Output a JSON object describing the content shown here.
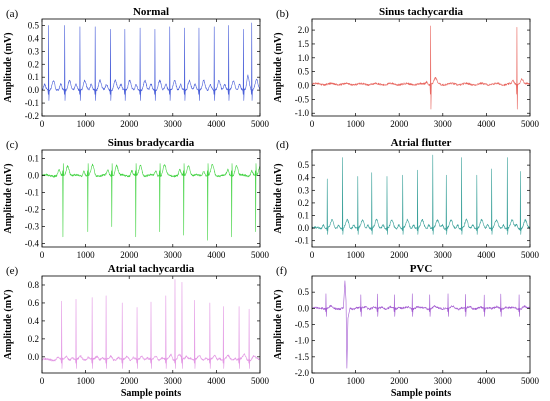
{
  "chart_data": [
    {
      "type": "line",
      "panel": "(a)",
      "title": "Normal",
      "ylabel": "Amplitude (mV)",
      "xlabel": "",
      "xlim": [
        0,
        5000
      ],
      "ylim": [
        -0.2,
        0.55
      ],
      "xticks": [
        0,
        1000,
        2000,
        3000,
        4000,
        5000
      ],
      "yticks": [
        -0.2,
        -0.1,
        0.0,
        0.1,
        0.2,
        0.3,
        0.4,
        0.5
      ],
      "ytick_labels": [
        "-0.2",
        "-0.1",
        "0.0",
        "0.1",
        "0.2",
        "0.3",
        "0.4",
        "0.5"
      ],
      "color": "#4a5fd9",
      "baseline": 0.0,
      "beats": [
        {
          "x": 150,
          "peak": 0.5
        },
        {
          "x": 520,
          "peak": 0.5
        },
        {
          "x": 870,
          "peak": 0.49
        },
        {
          "x": 1220,
          "peak": 0.49
        },
        {
          "x": 1570,
          "peak": 0.47
        },
        {
          "x": 1900,
          "peak": 0.47
        },
        {
          "x": 2250,
          "peak": 0.48
        },
        {
          "x": 2590,
          "peak": 0.47
        },
        {
          "x": 2930,
          "peak": 0.49
        },
        {
          "x": 3270,
          "peak": 0.48
        },
        {
          "x": 3600,
          "peak": 0.48
        },
        {
          "x": 3950,
          "peak": 0.49
        },
        {
          "x": 4280,
          "peak": 0.5
        },
        {
          "x": 4620,
          "peak": 0.47
        },
        {
          "x": 4810,
          "peak": 0.52
        }
      ],
      "twave": 0.08,
      "dip": -0.08
    },
    {
      "type": "line",
      "panel": "(b)",
      "title": "Sinus tachycardia",
      "ylabel": "Amplitude (mV)",
      "xlabel": "",
      "xlim": [
        0,
        5000
      ],
      "ylim": [
        -1.1,
        2.4
      ],
      "xticks": [
        0,
        1000,
        2000,
        3000,
        4000,
        5000
      ],
      "yticks": [
        -1.0,
        -0.5,
        0.0,
        0.5,
        1.0,
        1.5,
        2.0
      ],
      "ytick_labels": [
        "-1.0",
        "-0.5",
        "0.0",
        "0.5",
        "1.0",
        "1.5",
        "2.0"
      ],
      "color": "#e8665f",
      "baseline": 0.05,
      "beats": [
        {
          "x": 2720,
          "peak": 2.15
        },
        {
          "x": 4700,
          "peak": 2.1
        }
      ],
      "twave": 0.2,
      "dip": -0.9
    },
    {
      "type": "line",
      "panel": "(c)",
      "title": "Sinus bradycardia",
      "ylabel": "Amplitude (mV)",
      "xlabel": "",
      "xlim": [
        0,
        5000
      ],
      "ylim": [
        -0.42,
        0.15
      ],
      "xticks": [
        0,
        1000,
        2000,
        3000,
        4000,
        5000
      ],
      "yticks": [
        -0.4,
        -0.3,
        -0.2,
        -0.1,
        0.0,
        0.1
      ],
      "ytick_labels": [
        "-0.4",
        "-0.3",
        "-0.2",
        "-0.1",
        "0.0",
        "0.1"
      ],
      "color": "#3fd23f",
      "baseline": 0.0,
      "beats": [
        {
          "x": 480,
          "peak": -0.36
        },
        {
          "x": 1050,
          "peak": -0.33
        },
        {
          "x": 1600,
          "peak": -0.3
        },
        {
          "x": 2150,
          "peak": -0.36
        },
        {
          "x": 2700,
          "peak": -0.33
        },
        {
          "x": 3250,
          "peak": -0.35
        },
        {
          "x": 3800,
          "peak": -0.38
        },
        {
          "x": 4350,
          "peak": -0.36
        },
        {
          "x": 4900,
          "peak": -0.33
        }
      ],
      "twave": 0.06,
      "dip": 0.07
    },
    {
      "type": "line",
      "panel": "(d)",
      "title": "Atrial flutter",
      "ylabel": "Amplitude (mV)",
      "xlabel": "",
      "xlim": [
        0,
        5000
      ],
      "ylim": [
        -0.15,
        0.62
      ],
      "xticks": [
        0,
        1000,
        2000,
        3000,
        4000,
        5000
      ],
      "yticks": [
        -0.1,
        0.0,
        0.1,
        0.2,
        0.3,
        0.4,
        0.5
      ],
      "ytick_labels": [
        "-0.1",
        "0.0",
        "0.1",
        "0.2",
        "0.3",
        "0.4",
        "0.5"
      ],
      "color": "#3aa19a",
      "baseline": 0.0,
      "beats": [
        {
          "x": 350,
          "peak": 0.39
        },
        {
          "x": 700,
          "peak": 0.56
        },
        {
          "x": 1050,
          "peak": 0.41
        },
        {
          "x": 1370,
          "peak": 0.44
        },
        {
          "x": 1720,
          "peak": 0.41
        },
        {
          "x": 2080,
          "peak": 0.42
        },
        {
          "x": 2420,
          "peak": 0.46
        },
        {
          "x": 2770,
          "peak": 0.58
        },
        {
          "x": 3080,
          "peak": 0.42
        },
        {
          "x": 3430,
          "peak": 0.56
        },
        {
          "x": 3780,
          "peak": 0.42
        },
        {
          "x": 4120,
          "peak": 0.47
        },
        {
          "x": 4480,
          "peak": 0.56
        },
        {
          "x": 4780,
          "peak": 0.45
        }
      ],
      "twave": 0.06,
      "dip": -0.05
    },
    {
      "type": "line",
      "panel": "(e)",
      "title": "Atrial tachycardia",
      "ylabel": "Amplitude (mV)",
      "xlabel": "Sample points",
      "xlim": [
        0,
        5000
      ],
      "ylim": [
        -0.18,
        0.9
      ],
      "xticks": [
        0,
        1000,
        2000,
        3000,
        4000,
        5000
      ],
      "yticks": [
        -0.2,
        0.0,
        0.2,
        0.4,
        0.6,
        0.8
      ],
      "ytick_labels": [
        "-0.2",
        "0.0",
        "0.2",
        "0.4",
        "0.6",
        "0.8"
      ],
      "color": "#e398e4",
      "baseline": -0.03,
      "beats": [
        {
          "x": 450,
          "peak": 0.62
        },
        {
          "x": 780,
          "peak": 0.64
        },
        {
          "x": 1150,
          "peak": 0.66
        },
        {
          "x": 1470,
          "peak": 0.68
        },
        {
          "x": 1840,
          "peak": 0.6
        },
        {
          "x": 2180,
          "peak": 0.55
        },
        {
          "x": 2500,
          "peak": 0.61
        },
        {
          "x": 2840,
          "peak": 0.68
        },
        {
          "x": 3050,
          "peak": 0.86
        },
        {
          "x": 3210,
          "peak": 0.83
        },
        {
          "x": 3500,
          "peak": 0.63
        },
        {
          "x": 3850,
          "peak": 0.6
        },
        {
          "x": 4160,
          "peak": 0.56
        },
        {
          "x": 4520,
          "peak": 0.56
        },
        {
          "x": 4750,
          "peak": 0.53
        }
      ],
      "twave": 0.04,
      "dip": -0.1
    },
    {
      "type": "line",
      "panel": "(f)",
      "title": "PVC",
      "ylabel": "Amplitude (mV)",
      "xlabel": "Sample points",
      "xlim": [
        0,
        5000
      ],
      "ylim": [
        -2.0,
        1.0
      ],
      "xticks": [
        0,
        1000,
        2000,
        3000,
        4000,
        5000
      ],
      "yticks": [
        -2.0,
        -1.5,
        -1.0,
        -0.5,
        0.0,
        0.5
      ],
      "ytick_labels": [
        "-2.0",
        "-1.5",
        "-1.0",
        "-0.5",
        "0.0",
        "0.5"
      ],
      "color": "#a35bd1",
      "baseline": 0.0,
      "beats": [
        {
          "x": 320,
          "peak": 0.45
        },
        {
          "x": 1120,
          "peak": 0.42
        },
        {
          "x": 1500,
          "peak": 0.44
        },
        {
          "x": 1890,
          "peak": 0.42
        },
        {
          "x": 2300,
          "peak": 0.45
        },
        {
          "x": 2700,
          "peak": 0.42
        },
        {
          "x": 3120,
          "peak": 0.45
        },
        {
          "x": 3520,
          "peak": 0.43
        },
        {
          "x": 3950,
          "peak": 0.41
        },
        {
          "x": 4330,
          "peak": 0.44
        },
        {
          "x": 4750,
          "peak": 0.42
        }
      ],
      "pvc": {
        "x": 780,
        "peak": 0.85,
        "trough": -1.85
      },
      "twave": 0.05,
      "dip": -0.25
    }
  ]
}
